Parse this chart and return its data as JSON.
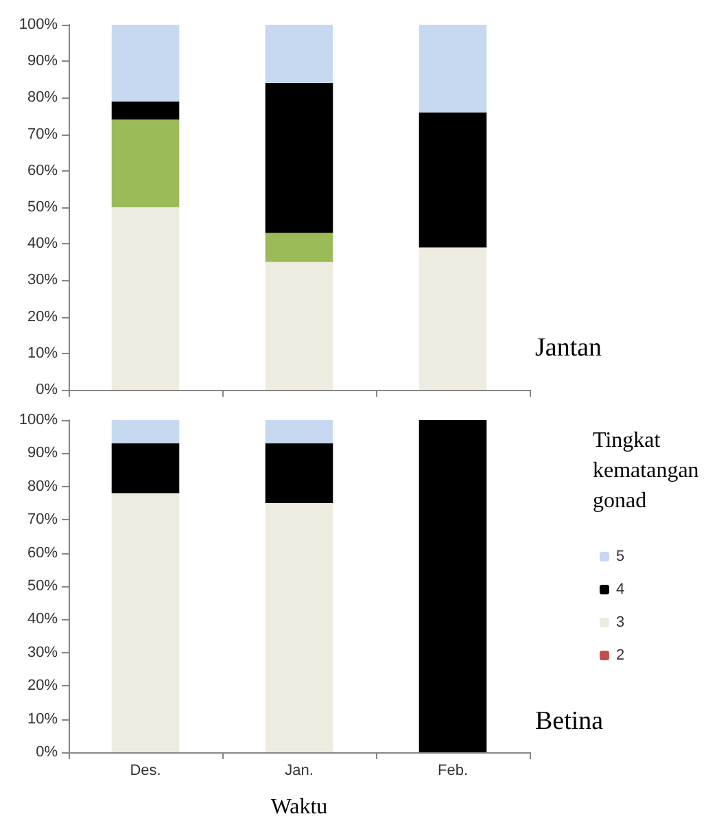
{
  "chart_data": [
    {
      "type": "bar",
      "stacked": true,
      "categories": [
        null,
        null,
        null
      ],
      "ylim": [
        0,
        100
      ],
      "yticks": [
        {
          "value": 0,
          "label": "0%"
        },
        {
          "value": 10,
          "label": "10%"
        },
        {
          "value": 20,
          "label": "20%"
        },
        {
          "value": 30,
          "label": "30%"
        },
        {
          "value": 40,
          "label": "40%"
        },
        {
          "value": 50,
          "label": "50%"
        },
        {
          "value": 60,
          "label": "60%"
        },
        {
          "value": 70,
          "label": "70%"
        },
        {
          "value": 80,
          "label": "80%"
        },
        {
          "value": 90,
          "label": "90%"
        },
        {
          "value": 100,
          "label": "100%"
        }
      ],
      "tick_labels": "y",
      "grid": false,
      "legend": false,
      "annotations": [
        "Jantan"
      ],
      "series": [
        {
          "color": "#eeebe0",
          "values": [
            50,
            35,
            39
          ]
        },
        {
          "color": "#9bbb59",
          "values": [
            24,
            8,
            0
          ]
        },
        {
          "color": "#000000",
          "values": [
            5,
            41,
            37
          ]
        },
        {
          "color": "#c6d9f1",
          "values": [
            21,
            16,
            24
          ]
        }
      ]
    },
    {
      "type": "bar",
      "stacked": true,
      "categories": [
        "Des.",
        "Jan.",
        "Feb."
      ],
      "xlabel": "Waktu",
      "legend_title": "Tingkat kematangan gonad",
      "ylim": [
        0,
        100
      ],
      "yticks": [
        {
          "value": 0,
          "label": "0%"
        },
        {
          "value": 10,
          "label": "10%"
        },
        {
          "value": 20,
          "label": "20%"
        },
        {
          "value": 30,
          "label": "30%"
        },
        {
          "value": 40,
          "label": "40%"
        },
        {
          "value": 50,
          "label": "50%"
        },
        {
          "value": 60,
          "label": "60%"
        },
        {
          "value": 70,
          "label": "70%"
        },
        {
          "value": 80,
          "label": "80%"
        },
        {
          "value": 90,
          "label": "90%"
        },
        {
          "value": 100,
          "label": "100%"
        }
      ],
      "grid": false,
      "legend": "right",
      "annotations": [
        "Betina"
      ],
      "series": [
        {
          "name": "2",
          "color": "#c0504d",
          "values": [
            0,
            0,
            0
          ]
        },
        {
          "name": "3",
          "color": "#eeebe0",
          "values": [
            78,
            75,
            0
          ]
        },
        {
          "name": "4",
          "color": "#000000",
          "values": [
            15,
            18,
            100
          ]
        },
        {
          "name": "5",
          "color": "#c6d9f1",
          "values": [
            7,
            7,
            0
          ]
        }
      ]
    }
  ]
}
